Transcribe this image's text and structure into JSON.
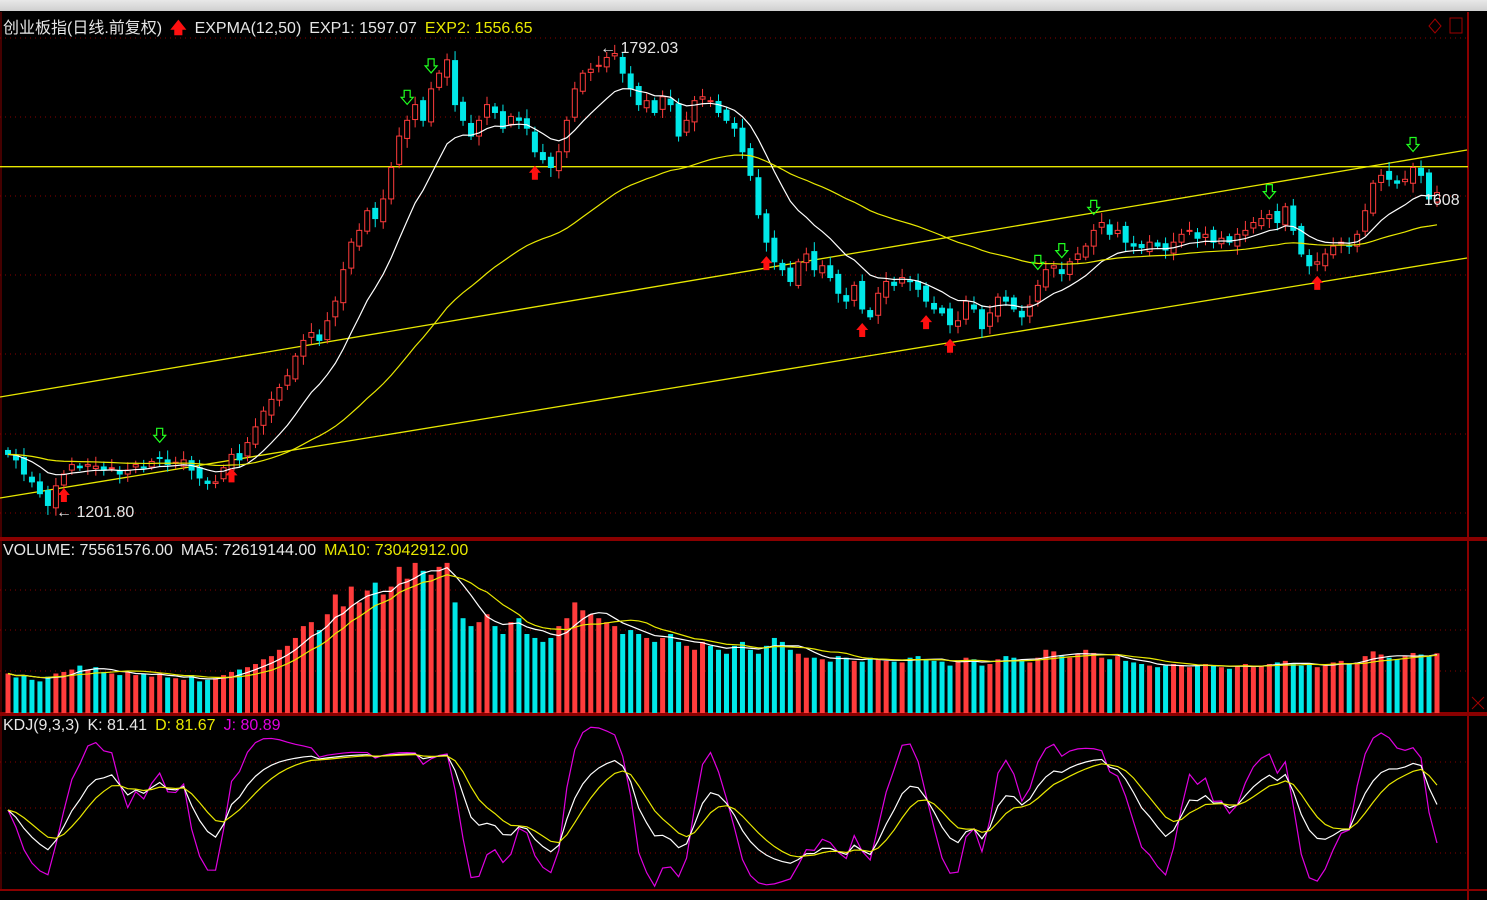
{
  "header": {
    "title": "创业板指(日线.前复权)",
    "indicator": "EXPMA(12,50)",
    "exp1": "EXP1: 1597.07",
    "exp2": "EXP2: 1556.65"
  },
  "volume_header": {
    "volume": "VOLUME: 75561576.00",
    "ma5": "MA5: 72619144.00",
    "ma10": "MA10: 73042912.00"
  },
  "kdj_header": {
    "name": "KDJ(9,3,3)",
    "k": "K: 81.41",
    "d": "D: 81.67",
    "j": "J: 80.89"
  },
  "labels": {
    "max": "1792.03",
    "min": "1201.80",
    "last": "1608"
  },
  "colors": {
    "up": "#ff3c3c",
    "down": "#00e8e8",
    "exp1": "#ffffff",
    "exp2": "#e8e800",
    "j": "#e000e0",
    "grid": "#8a0000",
    "trendline": "#e8e800"
  },
  "chart_data": {
    "type": "candlestick",
    "close": [
      1275,
      1268,
      1250,
      1240,
      1225,
      1210,
      1235,
      1250,
      1262,
      1258,
      1262,
      1260,
      1255,
      1258,
      1250,
      1255,
      1262,
      1258,
      1266,
      1270,
      1262,
      1265,
      1268,
      1255,
      1245,
      1238,
      1240,
      1258,
      1275,
      1268,
      1290,
      1310,
      1330,
      1345,
      1360,
      1375,
      1400,
      1420,
      1430,
      1420,
      1445,
      1470,
      1510,
      1545,
      1560,
      1585,
      1575,
      1600,
      1640,
      1680,
      1700,
      1720,
      1700,
      1740,
      1760,
      1777,
      1720,
      1700,
      1680,
      1700,
      1720,
      1710,
      1690,
      1705,
      1700,
      1690,
      1660,
      1650,
      1640,
      1660,
      1700,
      1740,
      1760,
      1765,
      1770,
      1780,
      1785,
      1760,
      1740,
      1720,
      1725,
      1710,
      1730,
      1720,
      1680,
      1700,
      1725,
      1730,
      1725,
      1710,
      1700,
      1690,
      1660,
      1630,
      1580,
      1545,
      1520,
      1510,
      1495,
      1520,
      1530,
      1510,
      1515,
      1500,
      1480,
      1470,
      1490,
      1460,
      1450,
      1480,
      1495,
      1490,
      1500,
      1495,
      1485,
      1470,
      1460,
      1455,
      1440,
      1445,
      1470,
      1460,
      1435,
      1455,
      1475,
      1470,
      1460,
      1450,
      1465,
      1490,
      1510,
      1515,
      1505,
      1520,
      1530,
      1540,
      1560,
      1570,
      1555,
      1560,
      1545,
      1540,
      1538,
      1545,
      1540,
      1535,
      1545,
      1555,
      1560,
      1550,
      1555,
      1545,
      1550,
      1545,
      1555,
      1560,
      1570,
      1575,
      1580,
      1570,
      1590,
      1560,
      1530,
      1515,
      1520,
      1530,
      1540,
      1545,
      1540,
      1555,
      1585,
      1620,
      1630,
      1625,
      1620,
      1625,
      1640,
      1630,
      1600,
      1608
    ],
    "volume_millions": [
      50,
      45,
      48,
      42,
      40,
      46,
      50,
      52,
      55,
      60,
      55,
      58,
      52,
      50,
      48,
      52,
      48,
      50,
      46,
      50,
      45,
      44,
      42,
      48,
      40,
      42,
      44,
      48,
      52,
      55,
      58,
      62,
      68,
      72,
      80,
      85,
      95,
      110,
      115,
      105,
      125,
      150,
      135,
      160,
      140,
      155,
      165,
      150,
      160,
      185,
      170,
      190,
      180,
      175,
      185,
      190,
      140,
      120,
      110,
      115,
      125,
      110,
      100,
      115,
      120,
      100,
      95,
      90,
      95,
      110,
      120,
      140,
      130,
      125,
      120,
      115,
      110,
      100,
      105,
      100,
      95,
      90,
      95,
      100,
      90,
      85,
      80,
      90,
      85,
      80,
      75,
      85,
      90,
      80,
      75,
      85,
      95,
      90,
      80,
      75,
      70,
      70,
      68,
      65,
      72,
      70,
      66,
      65,
      70,
      68,
      66,
      65,
      64,
      70,
      72,
      68,
      66,
      65,
      60,
      65,
      70,
      68,
      60,
      62,
      68,
      72,
      70,
      66,
      64,
      70,
      80,
      78,
      72,
      70,
      75,
      80,
      76,
      70,
      68,
      72,
      66,
      64,
      62,
      60,
      58,
      60,
      62,
      60,
      58,
      60,
      62,
      60,
      58,
      56,
      60,
      62,
      58,
      60,
      62,
      64,
      66,
      62,
      60,
      62,
      58,
      60,
      64,
      66,
      62,
      64,
      72,
      78,
      74,
      70,
      68,
      72,
      76,
      74,
      72,
      75.56
    ],
    "max_price": 1792.03,
    "min_price": 1201.8,
    "horizontal_line_price": 1641,
    "buy_signals": [
      7,
      28,
      66,
      95,
      107,
      115,
      118,
      164
    ],
    "sell_signals": [
      19,
      50,
      53,
      129,
      132,
      136,
      158,
      176
    ],
    "indicators": [
      "EXPMA(12,50)",
      "VOLUME MA5 MA10",
      "KDJ(9,3,3)"
    ]
  }
}
